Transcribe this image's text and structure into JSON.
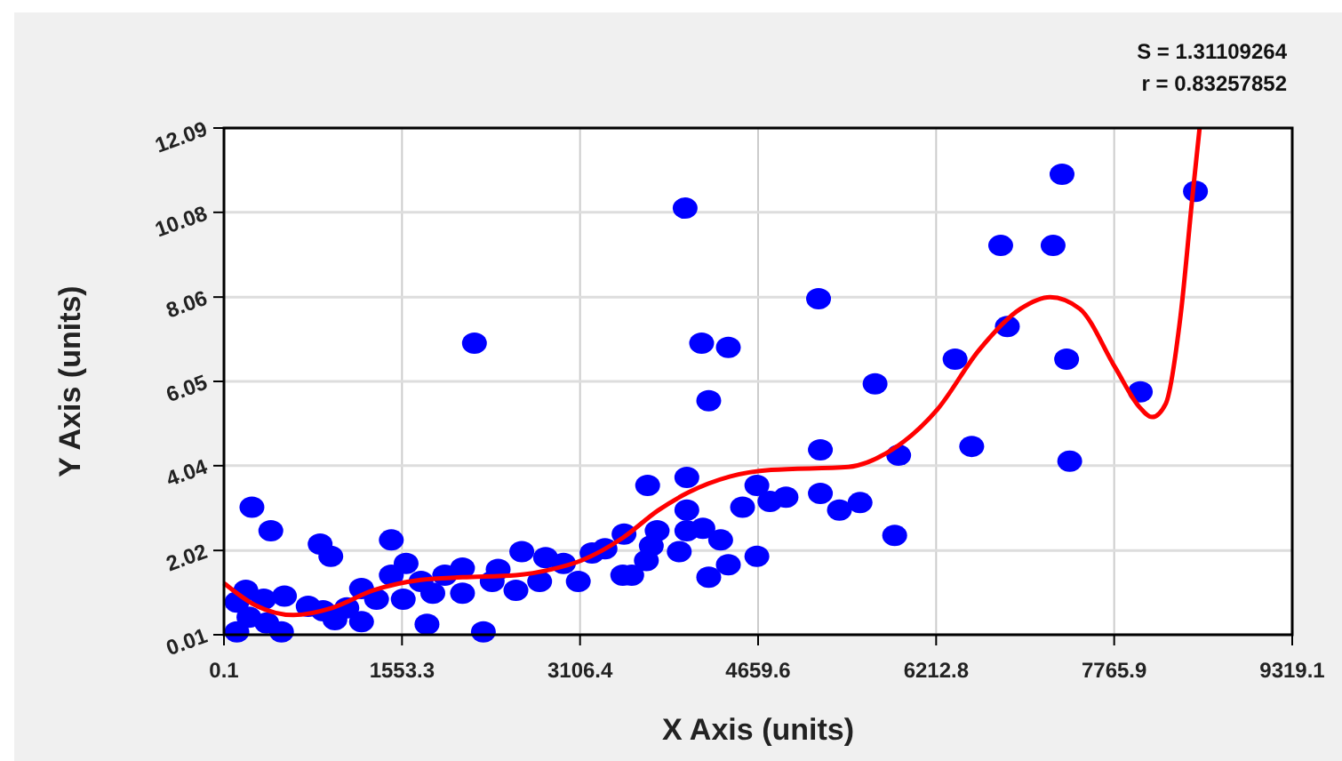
{
  "chart_data": {
    "type": "scatter",
    "xlabel": "X Axis (units)",
    "ylabel": "Y Axis (units)",
    "xlim": [
      0.1,
      9319.1
    ],
    "ylim": [
      0.01,
      12.09
    ],
    "xticks": [
      0.1,
      1553.3,
      3106.4,
      4659.6,
      6212.8,
      7765.9,
      9319.1
    ],
    "yticks": [
      0.01,
      2.02,
      4.04,
      6.05,
      8.06,
      10.08,
      12.09
    ],
    "grid": true,
    "marker": "circle",
    "annotations": [
      "S = 1.31109264",
      "r = 0.83257852"
    ],
    "series": [
      {
        "type": "scatter",
        "color": "#0000ff",
        "x": [
          4023,
          2185,
          4167,
          4400,
          4229,
          244,
          409,
          839,
          932,
          1460,
          3696,
          4038,
          4649,
          4524,
          4763,
          4038,
          3779,
          3490,
          4038,
          4178,
          4333,
          3728,
          3972,
          3685,
          4229,
          4400,
          4649,
          3479,
          3211,
          3324,
          3091,
          3557,
          2547,
          2754,
          2598,
          2806,
          2962,
          2392,
          2263,
          1771,
          2081,
          2081,
          1822,
          1589,
          1460,
          1564,
          1200,
          1200,
          968,
          735,
          528,
          347,
          191,
          113,
          113,
          218,
          502,
          373,
          865,
          1072,
          1331,
          1719,
          1926,
          2340,
          7311,
          8475,
          6776,
          7233,
          5187,
          6834,
          6378,
          7351,
          5680,
          7994,
          5203,
          5886,
          6523,
          7378,
          4903,
          5203,
          5369,
          5549,
          5851
        ],
        "values": [
          10.18,
          6.96,
          6.96,
          6.86,
          5.59,
          3.05,
          2.49,
          2.17,
          1.88,
          2.27,
          3.57,
          3.76,
          3.57,
          3.05,
          3.19,
          2.98,
          2.49,
          2.41,
          2.49,
          2.55,
          2.27,
          2.13,
          1.99,
          1.78,
          1.38,
          1.68,
          1.88,
          1.43,
          1.96,
          2.06,
          1.28,
          1.43,
          1.07,
          1.28,
          1.99,
          1.85,
          1.71,
          1.57,
          0.08,
          0.26,
          1.6,
          1.0,
          1.0,
          1.71,
          1.43,
          0.86,
          1.11,
          0.32,
          0.37,
          0.69,
          0.93,
          0.86,
          1.07,
          0.79,
          0.08,
          0.43,
          0.08,
          0.29,
          0.58,
          0.65,
          0.86,
          1.28,
          1.43,
          1.28,
          10.99,
          10.58,
          9.29,
          9.29,
          8.02,
          7.36,
          6.58,
          6.58,
          5.99,
          5.8,
          4.42,
          4.29,
          4.5,
          4.15,
          3.29,
          3.38,
          2.98,
          3.16,
          2.38
        ]
      },
      {
        "type": "line",
        "color": "#ff0000",
        "marker": "none",
        "x": [
          0.1,
          269,
          606,
          943,
          1305,
          1719,
          2081,
          2547,
          2858,
          3117,
          3479,
          3790,
          4049,
          4411,
          4773,
          5447,
          5809,
          6223,
          6585,
          6948,
          7207,
          7466,
          7777,
          7983,
          8097,
          8216,
          8346,
          8449,
          8511
        ],
        "values": [
          1.24,
          0.72,
          0.48,
          0.65,
          1.07,
          1.32,
          1.38,
          1.43,
          1.57,
          1.78,
          2.32,
          2.98,
          3.4,
          3.78,
          3.94,
          4.01,
          4.39,
          5.38,
          6.79,
          7.78,
          8.06,
          7.78,
          6.37,
          5.45,
          5.2,
          5.52,
          7.64,
          10.47,
          12.09
        ]
      }
    ]
  }
}
